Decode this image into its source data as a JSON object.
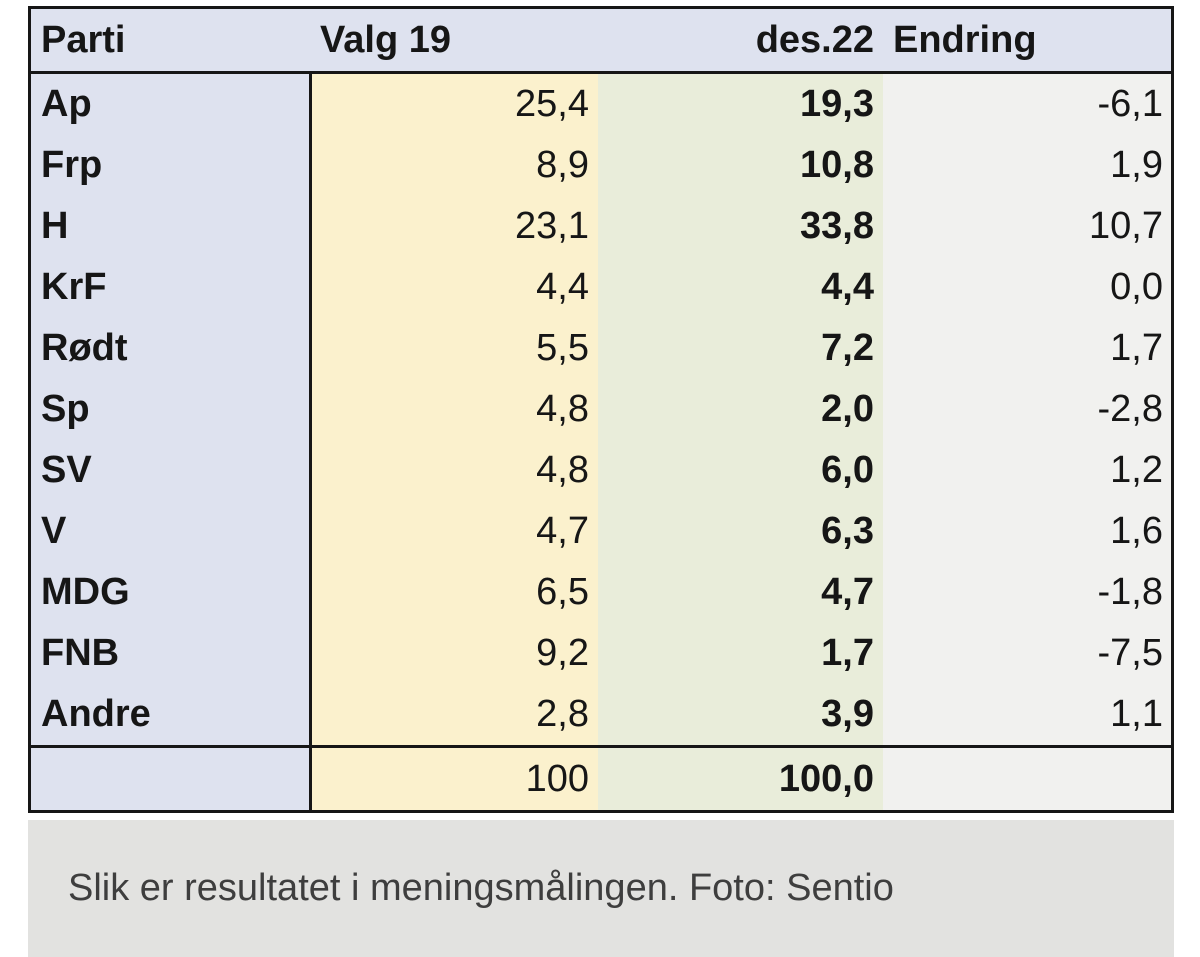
{
  "table": {
    "columns": [
      "Parti",
      "Valg 19",
      "des.22",
      "Endring"
    ],
    "rows": [
      {
        "parti": "Ap",
        "valg19": "25,4",
        "des22": "19,3",
        "endring": "-6,1"
      },
      {
        "parti": "Frp",
        "valg19": "8,9",
        "des22": "10,8",
        "endring": "1,9"
      },
      {
        "parti": "H",
        "valg19": "23,1",
        "des22": "33,8",
        "endring": "10,7"
      },
      {
        "parti": "KrF",
        "valg19": "4,4",
        "des22": "4,4",
        "endring": "0,0"
      },
      {
        "parti": "Rødt",
        "valg19": "5,5",
        "des22": "7,2",
        "endring": "1,7"
      },
      {
        "parti": "Sp",
        "valg19": "4,8",
        "des22": "2,0",
        "endring": "-2,8"
      },
      {
        "parti": "SV",
        "valg19": "4,8",
        "des22": "6,0",
        "endring": "1,2"
      },
      {
        "parti": "V",
        "valg19": "4,7",
        "des22": "6,3",
        "endring": "1,6"
      },
      {
        "parti": "MDG",
        "valg19": "6,5",
        "des22": "4,7",
        "endring": "-1,8"
      },
      {
        "parti": "FNB",
        "valg19": "9,2",
        "des22": "1,7",
        "endring": "-7,5"
      },
      {
        "parti": "Andre",
        "valg19": "2,8",
        "des22": "3,9",
        "endring": "1,1"
      }
    ],
    "total": {
      "parti": "",
      "valg19": "100",
      "des22": "100,0",
      "endring": ""
    }
  },
  "caption": {
    "text": "Slik er resultatet i meningsmålingen. Foto: Sentio"
  },
  "colors": {
    "party_column": "#dee2ef",
    "valg19_column": "#fbf1cd",
    "des22_column": "#e9edda",
    "endring_column": "#f1f1ef",
    "caption_band": "#e2e2e0",
    "border": "#161616"
  },
  "chart_data": {
    "type": "table",
    "title": "",
    "columns": [
      "Parti",
      "Valg 19",
      "des.22",
      "Endring"
    ],
    "rows": [
      [
        "Ap",
        25.4,
        19.3,
        -6.1
      ],
      [
        "Frp",
        8.9,
        10.8,
        1.9
      ],
      [
        "H",
        23.1,
        33.8,
        10.7
      ],
      [
        "KrF",
        4.4,
        4.4,
        0.0
      ],
      [
        "Rødt",
        5.5,
        7.2,
        1.7
      ],
      [
        "Sp",
        4.8,
        2.0,
        -2.8
      ],
      [
        "SV",
        4.8,
        6.0,
        1.2
      ],
      [
        "V",
        4.7,
        6.3,
        1.6
      ],
      [
        "MDG",
        6.5,
        4.7,
        -1.8
      ],
      [
        "FNB",
        9.2,
        1.7,
        -7.5
      ],
      [
        "Andre",
        2.8,
        3.9,
        1.1
      ]
    ],
    "totals": [
      "",
      100,
      100.0,
      ""
    ],
    "notes": "Norwegian party poll: election 2019 result vs December 2022 poll, with change"
  }
}
